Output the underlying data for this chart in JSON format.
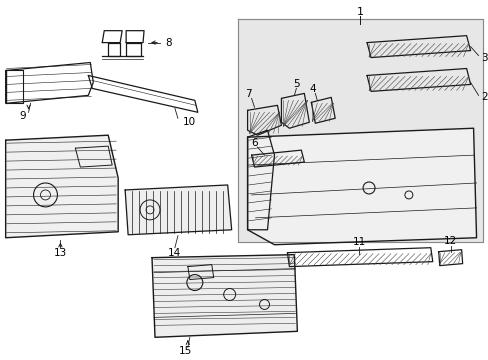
{
  "bg": "#ffffff",
  "box_bg": "#dcdcdc",
  "lc": "#1a1a1a",
  "lw_main": 1.0,
  "lw_thin": 0.5,
  "fig_w": 4.89,
  "fig_h": 3.6,
  "dpi": 100
}
